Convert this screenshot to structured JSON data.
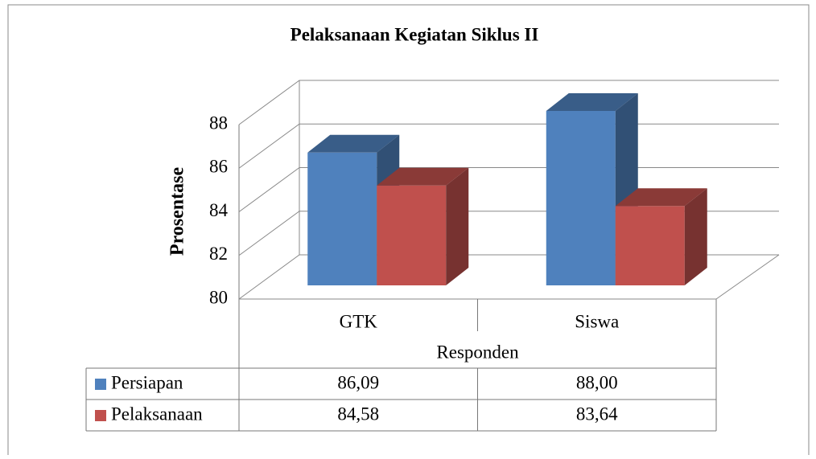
{
  "chart_data": {
    "type": "bar",
    "title": "Pelaksanaan Kegiatan Siklus II",
    "y_label": "Prosentase",
    "x_label": "Responden",
    "categories": [
      "GTK",
      "Siswa"
    ],
    "series": [
      {
        "name": "Persiapan",
        "color": "#4f81bd",
        "values": [
          86.09,
          88.0
        ],
        "value_labels": [
          "86,09",
          "88,00"
        ]
      },
      {
        "name": "Pelaksanaan",
        "color": "#c0504d",
        "values": [
          84.58,
          83.64
        ],
        "value_labels": [
          "84,58",
          "83,64"
        ]
      }
    ],
    "ylim": [
      80,
      88
    ],
    "yticks": [
      80,
      82,
      84,
      86,
      88
    ],
    "grid": true
  }
}
